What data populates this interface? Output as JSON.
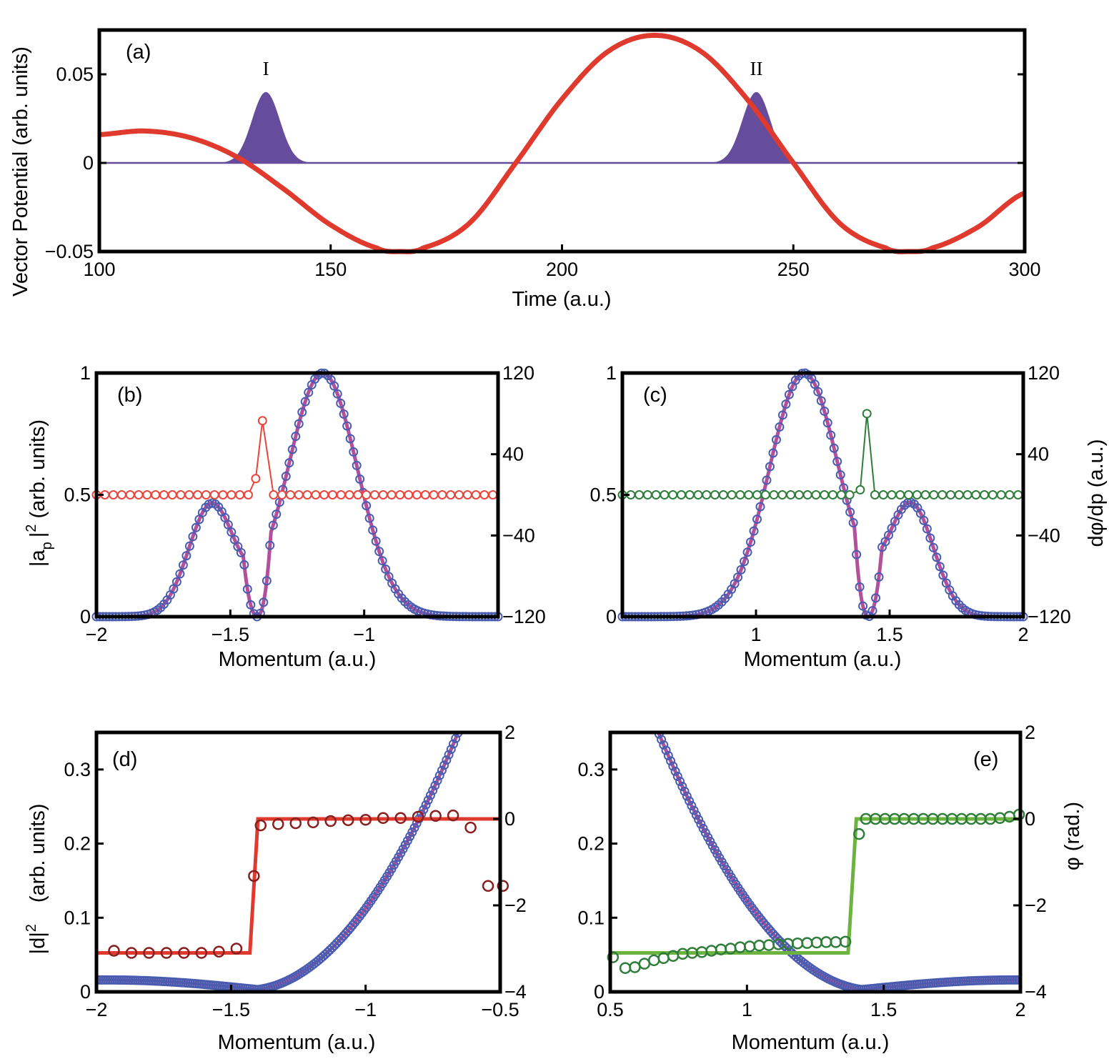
{
  "colors": {
    "red_curve": "#e03a2e",
    "purple_fill": "#664c9c",
    "blue_marker": "#4a5cb0",
    "magenta_fit": "#b2509c",
    "red_marker": "#e8453c",
    "dark_red_marker": "#8a1e1e",
    "dark_green_marker": "#2f7d3a",
    "green_line": "#6cb33f"
  },
  "chart_data": [
    {
      "id": "a",
      "type": "line",
      "tag": "(a)",
      "xlabel": "Time (a.u.)",
      "ylabel": "Vector Potential (arb. units)",
      "xlim": [
        100,
        300
      ],
      "ylim": [
        -0.05,
        0.075
      ],
      "xticks": [
        "100",
        "150",
        "200",
        "250",
        "300"
      ],
      "yticks": [
        "−0.05",
        "0",
        "0.05"
      ],
      "series": [
        {
          "name": "vector potential",
          "kind": "curve",
          "x": [
            100,
            110,
            120,
            130,
            140,
            150,
            160,
            165,
            170,
            180,
            190,
            200,
            210,
            220,
            230,
            240,
            250,
            260,
            270,
            275,
            280,
            290,
            300
          ],
          "y": [
            0.016,
            0.018,
            0.014,
            0.003,
            -0.015,
            -0.035,
            -0.048,
            -0.05,
            -0.048,
            -0.034,
            0.0,
            0.036,
            0.063,
            0.072,
            0.063,
            0.036,
            0.0,
            -0.034,
            -0.048,
            -0.05,
            -0.048,
            -0.036,
            -0.017
          ]
        },
        {
          "name": "pulse I",
          "kind": "gaussian",
          "center": 136,
          "width": 3.0,
          "amplitude": 0.04
        },
        {
          "name": "pulse II",
          "kind": "gaussian",
          "center": 242,
          "width": 3.0,
          "amplitude": 0.04
        }
      ],
      "annotations": [
        {
          "text": "I",
          "x": 136,
          "y": 0.052
        },
        {
          "text": "II",
          "x": 242,
          "y": 0.052
        }
      ]
    },
    {
      "id": "b",
      "type": "scatter",
      "tag": "(b)",
      "xlabel": "Momentum (a.u.)",
      "ylabel_main": "|a",
      "ylabel_sub": "p",
      "ylabel_bar": "|",
      "ylabel_sup": "2",
      "ylabel_rest": " (arb. units)",
      "xlim": [
        -2,
        -0.5
      ],
      "ylim": [
        0,
        1
      ],
      "ylim_right": [
        -120,
        120
      ],
      "xticks": [
        "−2",
        "−1.5",
        "−1"
      ],
      "xtick_values": [
        -2,
        -1.5,
        -1
      ],
      "yticks": [
        "0",
        "0.5",
        "1"
      ],
      "yticks_right": [
        "−120",
        "−40",
        "40",
        "120"
      ],
      "series": [
        {
          "name": "|a_p|^2",
          "kind": "two-gaussian",
          "peaks": [
            {
              "center": -1.57,
              "width": 0.085,
              "amplitude": 0.46
            },
            {
              "center": -1.155,
              "width": 0.13,
              "amplitude": 1.0
            }
          ],
          "dip": -1.4
        },
        {
          "name": "dφ/dp",
          "axis": "right",
          "baseline": 0,
          "spikes": [
            {
              "x": -1.405,
              "y": 16
            },
            {
              "x": -1.38,
              "y": 73
            }
          ]
        }
      ]
    },
    {
      "id": "c",
      "type": "scatter",
      "tag": "(c)",
      "xlabel": "Momentum (a.u.)",
      "ylabel_right": "dφ/dp (a.u.)",
      "xlim": [
        0.5,
        2
      ],
      "ylim": [
        0,
        1
      ],
      "ylim_right": [
        -120,
        120
      ],
      "xticks": [
        "1",
        "1.5",
        "2"
      ],
      "xtick_values": [
        1,
        1.5,
        2
      ],
      "yticks": [
        "0",
        "0.5",
        "1"
      ],
      "yticks_right": [
        "−120",
        "−40",
        "40",
        "120"
      ],
      "series": [
        {
          "name": "|a_p|^2",
          "kind": "two-gaussian",
          "peaks": [
            {
              "center": 1.18,
              "width": 0.13,
              "amplitude": 1.0
            },
            {
              "center": 1.58,
              "width": 0.085,
              "amplitude": 0.46
            }
          ],
          "dip": 1.42
        },
        {
          "name": "dφ/dp",
          "axis": "right",
          "baseline": 0,
          "spikes": [
            {
              "x": 1.39,
              "y": 5
            },
            {
              "x": 1.415,
              "y": 80
            }
          ]
        }
      ]
    },
    {
      "id": "d",
      "type": "scatter",
      "tag": "(d)",
      "xlabel": "Momentum (a.u.)",
      "ylabel_main": "|d|",
      "ylabel_sup": "2",
      "ylabel_rest": "(arb. units)",
      "xlim": [
        -2,
        -0.5
      ],
      "ylim": [
        0,
        0.35
      ],
      "ylim_right": [
        -4,
        2
      ],
      "xticks": [
        "−2",
        "−1.5",
        "−1",
        "−0.5"
      ],
      "xtick_values": [
        -2,
        -1.5,
        -1,
        -0.5
      ],
      "yticks": [
        "0",
        "0.1",
        "0.2",
        "0.3"
      ],
      "ytick_values": [
        0,
        0.1,
        0.2,
        0.3
      ],
      "yticks_right": [
        "−4",
        "−2",
        "0",
        "2"
      ],
      "ytick_right_values": [
        -4,
        -2,
        0,
        2
      ],
      "series": [
        {
          "name": "|d|^2 fit",
          "kind": "line",
          "x_min_value": 0.003,
          "x_min": -1.4
        },
        {
          "name": "phase step",
          "axis": "right",
          "kind": "step",
          "x": [
            -2,
            -1.43,
            -1.4,
            -0.5
          ],
          "y": [
            -3.1,
            -3.1,
            0,
            0
          ]
        },
        {
          "name": "phase points",
          "axis": "right",
          "kind": "markers",
          "x": [
            -1.935,
            -1.87,
            -1.805,
            -1.74,
            -1.675,
            -1.61,
            -1.545,
            -1.48,
            -1.415,
            -1.39,
            -1.325,
            -1.26,
            -1.195,
            -1.13,
            -1.065,
            -1.0,
            -0.935,
            -0.87,
            -0.805,
            -0.74,
            -0.675,
            -0.61,
            -0.545,
            -0.49
          ],
          "y": [
            -3.05,
            -3.1,
            -3.1,
            -3.1,
            -3.1,
            -3.1,
            -3.07,
            -3.0,
            -1.32,
            -0.15,
            -0.12,
            -0.1,
            -0.08,
            -0.05,
            -0.03,
            -0.02,
            0.02,
            0.02,
            0.05,
            0.07,
            0.08,
            -0.2,
            -1.55,
            -1.55
          ]
        }
      ]
    },
    {
      "id": "e",
      "type": "scatter",
      "tag": "(e)",
      "xlabel": "Momentum (a.u.)",
      "ylabel_right": "φ  (rad.)",
      "xlim": [
        0.5,
        2
      ],
      "ylim": [
        0,
        0.35
      ],
      "ylim_right": [
        -4,
        2
      ],
      "xticks": [
        "0.5",
        "1",
        "1.5",
        "2"
      ],
      "xtick_values": [
        0.5,
        1,
        1.5,
        2
      ],
      "yticks": [
        "0",
        "0.1",
        "0.2",
        "0.3"
      ],
      "ytick_values": [
        0,
        0.1,
        0.2,
        0.3
      ],
      "yticks_right": [
        "−4",
        "−2",
        "0",
        "2"
      ],
      "ytick_right_values": [
        -4,
        -2,
        0,
        2
      ],
      "series": [
        {
          "name": "|d|^2 fit",
          "kind": "line",
          "x_min_value": 0.003,
          "x_min": 1.42
        },
        {
          "name": "phase step",
          "axis": "right",
          "kind": "step",
          "x": [
            0.5,
            1.37,
            1.4,
            2.0
          ],
          "y": [
            -3.1,
            -3.1,
            0,
            0
          ]
        },
        {
          "name": "phase points",
          "axis": "right",
          "kind": "markers",
          "x": [
            0.51,
            0.555,
            0.59,
            0.625,
            0.66,
            0.695,
            0.73,
            0.765,
            0.8,
            0.835,
            0.87,
            0.905,
            0.94,
            0.975,
            1.01,
            1.045,
            1.08,
            1.115,
            1.15,
            1.185,
            1.22,
            1.255,
            1.29,
            1.325,
            1.36,
            1.41,
            1.435,
            1.47,
            1.505,
            1.54,
            1.575,
            1.61,
            1.645,
            1.68,
            1.715,
            1.75,
            1.785,
            1.82,
            1.855,
            1.89,
            1.925,
            1.96,
            1.995
          ],
          "y": [
            -3.2,
            -3.45,
            -3.43,
            -3.35,
            -3.27,
            -3.22,
            -3.17,
            -3.12,
            -3.1,
            -3.08,
            -3.05,
            -3.02,
            -3.0,
            -2.97,
            -2.95,
            -2.93,
            -2.92,
            -2.9,
            -2.89,
            -2.88,
            -2.87,
            -2.86,
            -2.85,
            -2.85,
            -2.84,
            -0.35,
            0.0,
            0.0,
            0.0,
            0.0,
            0.0,
            0.0,
            0.0,
            0.0,
            0.0,
            0.0,
            0.0,
            0.0,
            0.0,
            0.0,
            0.02,
            0.05,
            0.1
          ]
        }
      ]
    }
  ]
}
